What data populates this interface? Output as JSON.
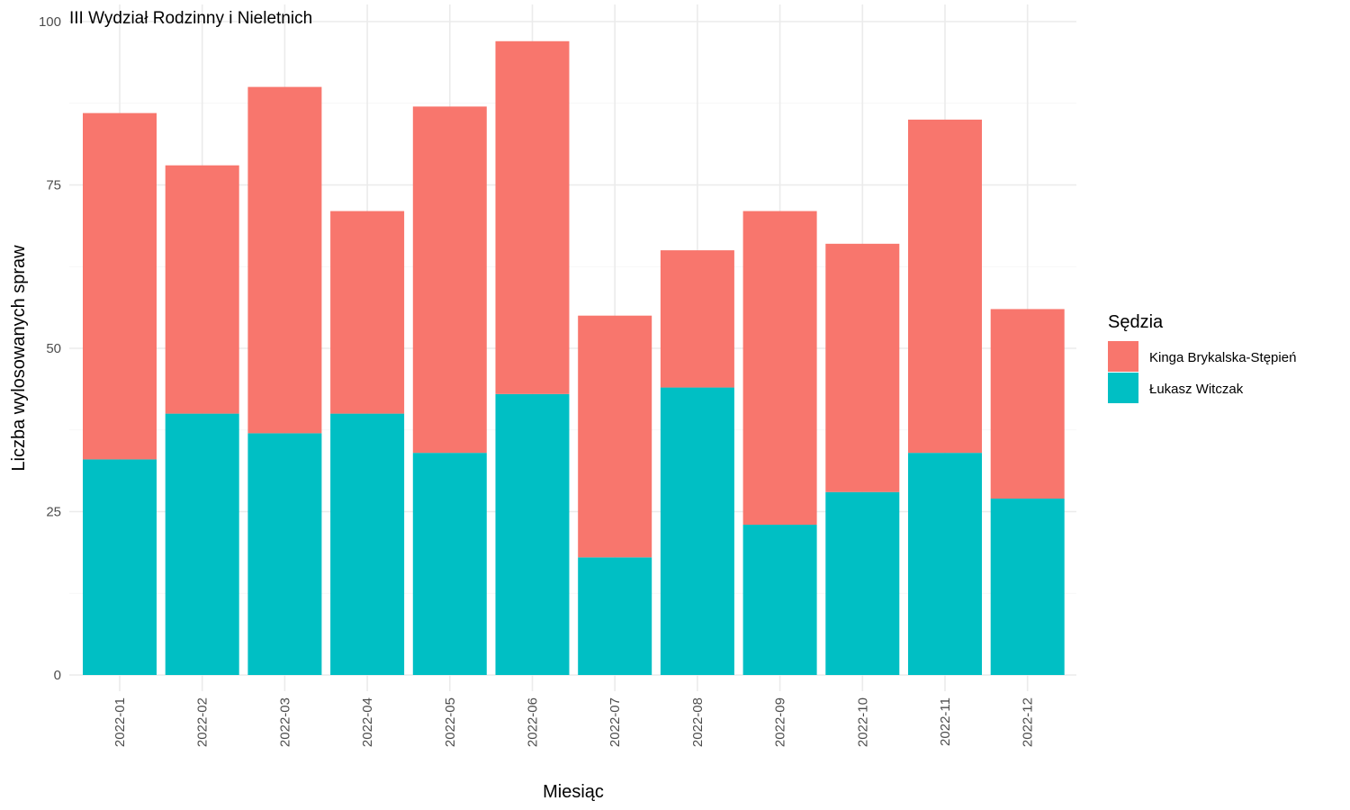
{
  "chart_data": {
    "type": "bar",
    "stacked": true,
    "title": "III Wydział Rodzinny i Nieletnich",
    "xlabel": "Miesiąc",
    "ylabel": "Liczba wylosowanych spraw",
    "ylim": [
      0,
      100
    ],
    "yticks": [
      "0",
      "25",
      "50",
      "75",
      "100"
    ],
    "grid": true,
    "legend": {
      "title": "Sędzia",
      "position": "right"
    },
    "categories": [
      "2022-01",
      "2022-02",
      "2022-03",
      "2022-04",
      "2022-05",
      "2022-06",
      "2022-07",
      "2022-08",
      "2022-09",
      "2022-10",
      "2022-11",
      "2022-12"
    ],
    "series": [
      {
        "name": "Łukasz Witczak",
        "color": "#00BFC4",
        "values": [
          33,
          40,
          37,
          40,
          34,
          43,
          18,
          44,
          23,
          28,
          34,
          27
        ]
      },
      {
        "name": "Kinga Brykalska-Stępień",
        "color": "#F8766D",
        "values": [
          53,
          38,
          53,
          31,
          53,
          54,
          37,
          21,
          48,
          38,
          51,
          29
        ]
      }
    ],
    "legend_order": [
      "Kinga Brykalska-Stępień",
      "Łukasz Witczak"
    ]
  }
}
